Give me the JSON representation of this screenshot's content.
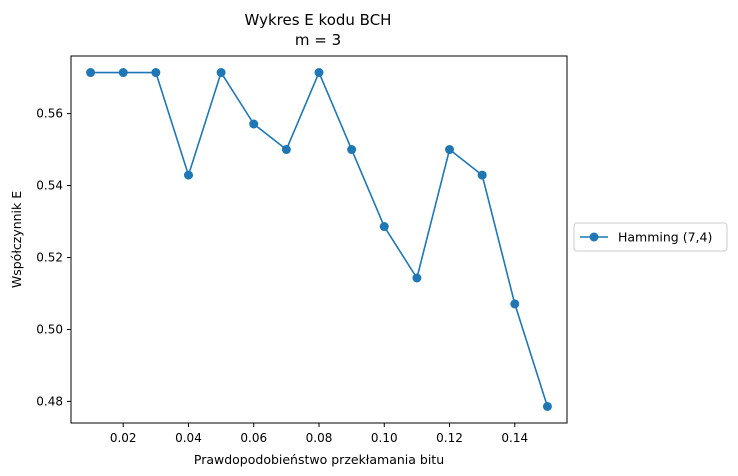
{
  "chart_data": {
    "type": "line",
    "title": "Wykres E kodu BCH",
    "subtitle": "m = 3",
    "xlabel": "Prawdopodobieństwo przekłamania bitu",
    "ylabel": "Współczynnik E",
    "xlim": [
      0.004,
      0.156
    ],
    "ylim": [
      0.474,
      0.576
    ],
    "xticks": [
      0.02,
      0.04,
      0.06,
      0.08,
      0.1,
      0.12,
      0.14
    ],
    "xtick_labels": [
      "0.02",
      "0.04",
      "0.06",
      "0.08",
      "0.10",
      "0.12",
      "0.14"
    ],
    "yticks": [
      0.48,
      0.5,
      0.52,
      0.54,
      0.56
    ],
    "ytick_labels": [
      "0.48",
      "0.50",
      "0.52",
      "0.54",
      "0.56"
    ],
    "grid": false,
    "legend_position": "outside-right",
    "series": [
      {
        "name": "Hamming (7,4)",
        "color": "#1f77b4",
        "marker": "circle",
        "x": [
          0.01,
          0.02,
          0.03,
          0.04,
          0.05,
          0.06,
          0.07,
          0.08,
          0.09,
          0.1,
          0.11,
          0.12,
          0.13,
          0.14,
          0.15
        ],
        "y": [
          0.5714,
          0.5714,
          0.5714,
          0.5429,
          0.5714,
          0.5571,
          0.55,
          0.5714,
          0.55,
          0.5286,
          0.5143,
          0.55,
          0.5429,
          0.5071,
          0.4786
        ]
      }
    ]
  }
}
